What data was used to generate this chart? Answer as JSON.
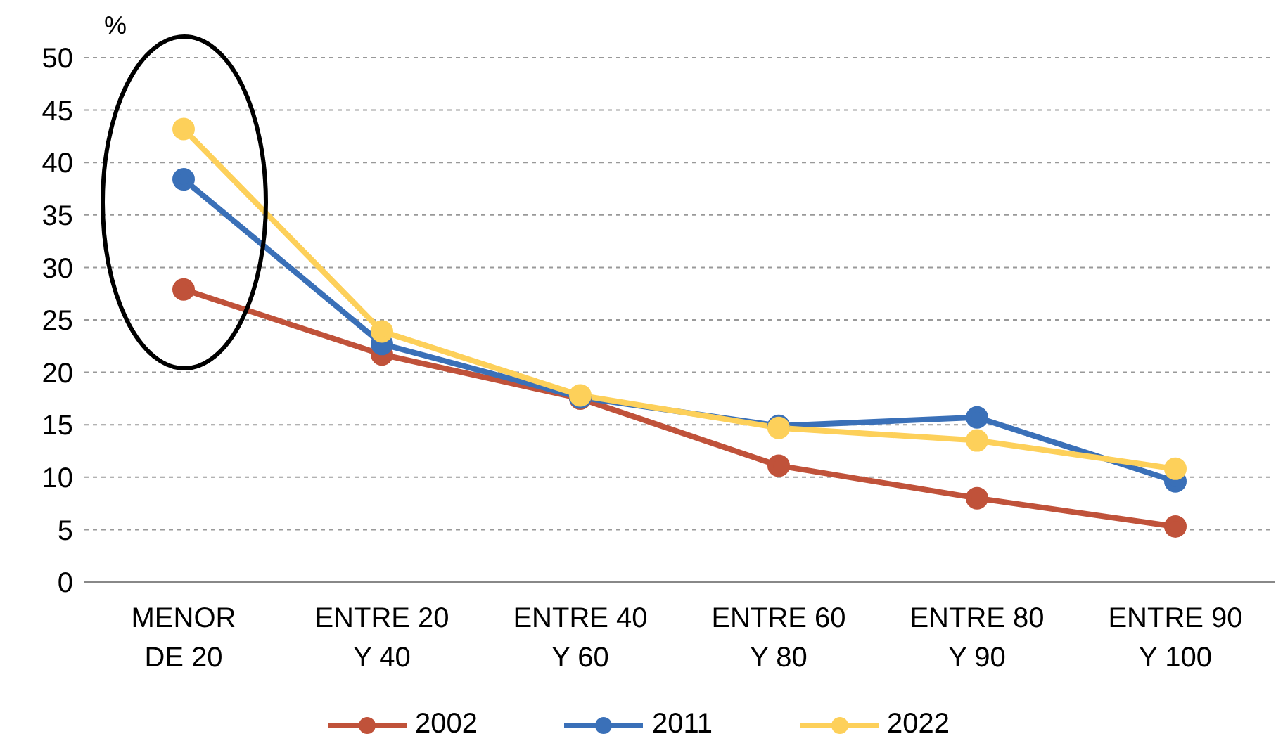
{
  "chart_data": {
    "type": "line",
    "ylabel": "%",
    "categories": [
      "MENOR\nDE 20",
      "ENTRE 20\nY 40",
      "ENTRE 40\nY 60",
      "ENTRE 60\nY 80",
      "ENTRE 80\nY 90",
      "ENTRE 90\nY 100"
    ],
    "series": [
      {
        "name": "2002",
        "color": "#c0523a",
        "values": [
          27.9,
          21.7,
          17.5,
          11.1,
          8.0,
          5.3
        ]
      },
      {
        "name": "2011",
        "color": "#3a70b8",
        "values": [
          38.4,
          22.7,
          17.6,
          14.9,
          15.7,
          9.6
        ]
      },
      {
        "name": "2022",
        "color": "#fdd05a",
        "values": [
          43.2,
          23.9,
          17.8,
          14.7,
          13.5,
          10.8
        ]
      }
    ],
    "ylim": [
      0,
      50
    ],
    "yticks": [
      0,
      5,
      10,
      15,
      20,
      25,
      30,
      35,
      40,
      45,
      50
    ],
    "grid": "y",
    "legend": "bottom",
    "marker": "circle",
    "line_style": "solid"
  }
}
